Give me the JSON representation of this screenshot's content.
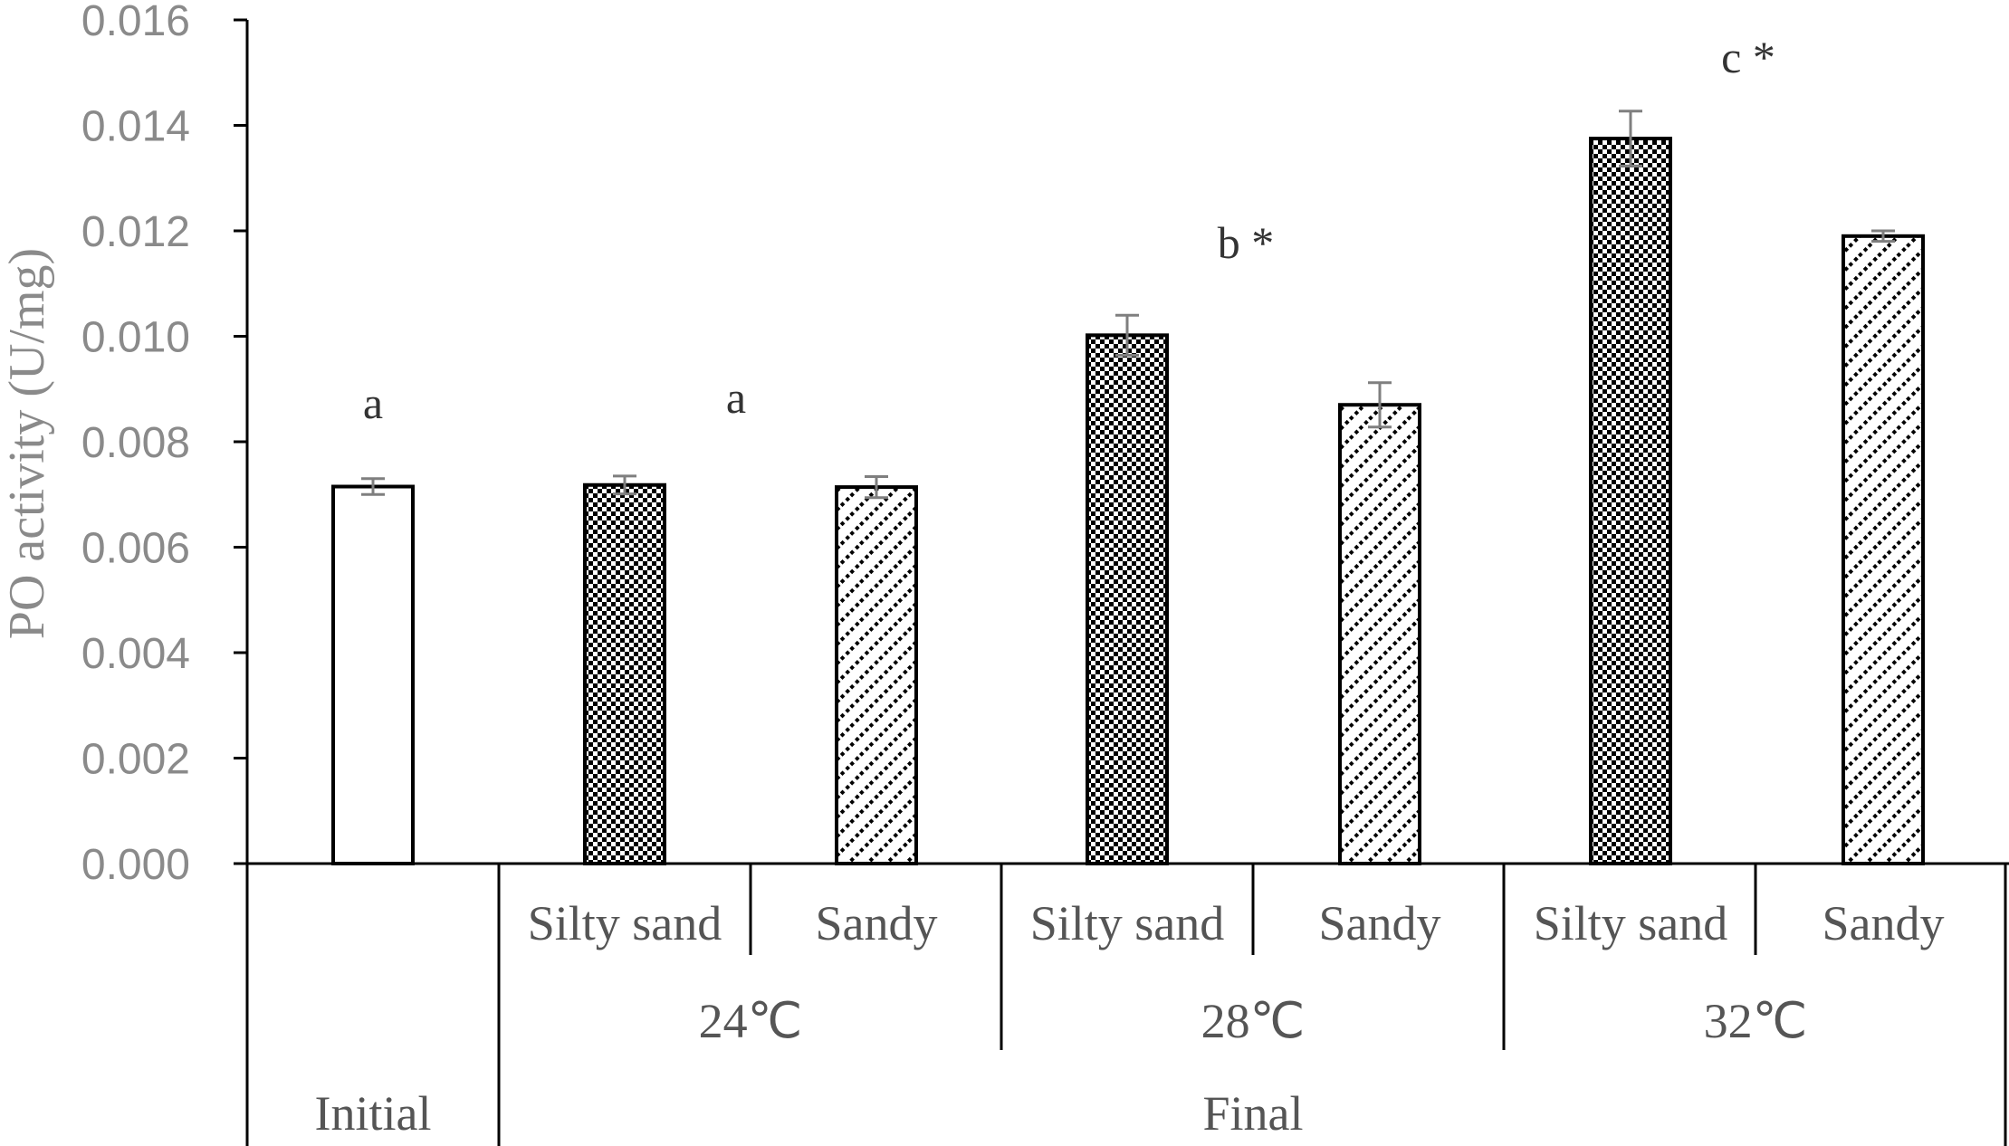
{
  "chart_data": {
    "type": "bar",
    "title": "",
    "ylabel": "PO activity (U/mg)",
    "xlabel": "",
    "ylim": [
      0,
      0.016
    ],
    "yticks": [
      "0.000",
      "0.002",
      "0.004",
      "0.006",
      "0.008",
      "0.010",
      "0.012",
      "0.014",
      "0.016"
    ],
    "grid": false,
    "legend": "none",
    "bars": [
      {
        "category": "Initial",
        "value": 0.00715,
        "error": 0.00015,
        "pattern": "plain"
      },
      {
        "category": "Silty sand",
        "value": 0.00718,
        "error": 0.00017,
        "pattern": "checker"
      },
      {
        "category": "Sandy",
        "value": 0.00714,
        "error": 0.0002,
        "pattern": "diagonal"
      },
      {
        "category": "Silty sand",
        "value": 0.01002,
        "error": 0.00038,
        "pattern": "checker"
      },
      {
        "category": "Sandy",
        "value": 0.0087,
        "error": 0.00042,
        "pattern": "diagonal"
      },
      {
        "category": "Silty sand",
        "value": 0.01375,
        "error": 0.00052,
        "pattern": "checker"
      },
      {
        "category": "Sandy",
        "value": 0.0119,
        "error": 0.0001,
        "pattern": "diagonal"
      }
    ],
    "soil_labels": [
      "Silty sand",
      "Sandy",
      "Silty sand",
      "Sandy",
      "Silty sand",
      "Sandy"
    ],
    "temperature_labels": [
      "24℃",
      "28℃",
      "32℃"
    ],
    "stage_labels": [
      "Initial",
      "Final"
    ],
    "annotations": [
      {
        "text": "a",
        "over_bar": 0
      },
      {
        "text": "a",
        "over_group": "24℃"
      },
      {
        "text": "b *",
        "over_group": "28℃"
      },
      {
        "text": "c *",
        "over_group": "32℃"
      }
    ],
    "colors": {
      "axis": "#000000",
      "error_bar": "#7f7f7f",
      "tick_text": "#8a8a8a",
      "category_text": "#555555"
    }
  }
}
